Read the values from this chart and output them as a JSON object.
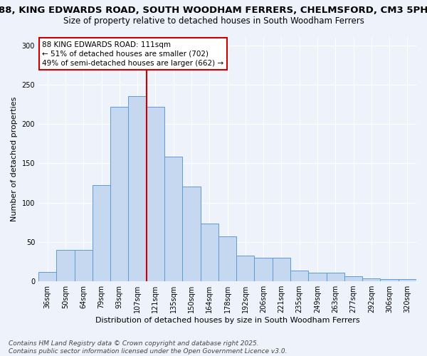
{
  "title": "88, KING EDWARDS ROAD, SOUTH WOODHAM FERRERS, CHELMSFORD, CM3 5PH",
  "subtitle": "Size of property relative to detached houses in South Woodham Ferrers",
  "xlabel": "Distribution of detached houses by size in South Woodham Ferrers",
  "ylabel": "Number of detached properties",
  "categories": [
    "36sqm",
    "50sqm",
    "64sqm",
    "79sqm",
    "93sqm",
    "107sqm",
    "121sqm",
    "135sqm",
    "150sqm",
    "164sqm",
    "178sqm",
    "192sqm",
    "206sqm",
    "221sqm",
    "235sqm",
    "249sqm",
    "263sqm",
    "277sqm",
    "292sqm",
    "306sqm",
    "320sqm"
  ],
  "values": [
    12,
    40,
    40,
    122,
    222,
    235,
    222,
    158,
    120,
    73,
    57,
    33,
    30,
    30,
    14,
    11,
    11,
    6,
    4,
    3,
    3
  ],
  "bar_color": "#c5d8f0",
  "bar_edge_color": "#5b9bd5",
  "vline_pos": 5.5,
  "vline_color": "#cc0000",
  "annotation_text": "88 KING EDWARDS ROAD: 111sqm\n← 51% of detached houses are smaller (702)\n49% of semi-detached houses are larger (662) →",
  "ylim": [
    0,
    310
  ],
  "yticks": [
    0,
    50,
    100,
    150,
    200,
    250,
    300
  ],
  "background_color": "#eef2fa",
  "grid_color": "#ffffff",
  "footer": "Contains HM Land Registry data © Crown copyright and database right 2025.\nContains public sector information licensed under the Open Government Licence v3.0.",
  "title_fontsize": 9.5,
  "subtitle_fontsize": 8.5,
  "axis_label_fontsize": 8,
  "tick_fontsize": 7,
  "annotation_fontsize": 7.5,
  "footer_fontsize": 6.5
}
